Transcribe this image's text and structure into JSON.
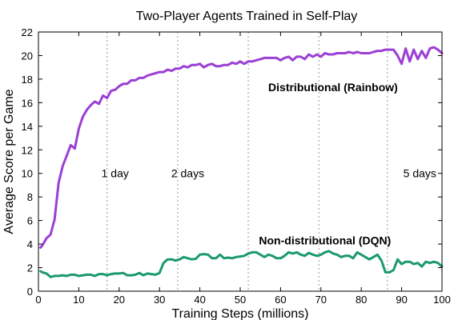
{
  "chart_data": {
    "type": "line",
    "title": "Two-Player Agents Trained in Self-Play",
    "xlabel": "Training Steps (millions)",
    "ylabel": "Average Score per Game",
    "xlim": [
      0,
      100
    ],
    "ylim": [
      0,
      22
    ],
    "xticks": [
      "0",
      "10",
      "20",
      "30",
      "40",
      "50",
      "60",
      "70",
      "80",
      "90",
      "100"
    ],
    "yticks": [
      "0",
      "2",
      "4",
      "6",
      "8",
      "10",
      "12",
      "14",
      "16",
      "18",
      "20",
      "22"
    ],
    "grid": false,
    "markers": [
      {
        "x": 17,
        "label": "1 day",
        "label_x": 19,
        "label_y": 10
      },
      {
        "x": 34.5,
        "label": "2 days",
        "label_x": 37,
        "label_y": 10
      },
      {
        "x": 52,
        "label": "",
        "label_x": null,
        "label_y": null
      },
      {
        "x": 69.5,
        "label": "",
        "label_x": null,
        "label_y": null
      },
      {
        "x": 86.5,
        "label": "5 days",
        "label_x": 94.5,
        "label_y": 10
      }
    ],
    "series": [
      {
        "name": "Distributional (Rainbow)",
        "color": "#9b3fd6",
        "label_x": 73,
        "label_y": 17.3,
        "x": [
          0.5,
          1,
          2,
          3,
          4,
          5,
          6,
          7,
          8,
          9,
          10,
          11,
          12,
          13,
          14,
          15,
          16,
          17,
          18,
          19,
          20,
          21,
          22,
          23,
          24,
          25,
          26,
          27,
          28,
          29,
          30,
          31,
          32,
          33,
          34,
          35,
          36,
          37,
          38,
          39,
          40,
          41,
          42,
          43,
          44,
          45,
          46,
          47,
          48,
          49,
          50,
          51,
          52,
          53,
          54,
          55,
          56,
          57,
          58,
          59,
          60,
          61,
          62,
          63,
          64,
          65,
          66,
          67,
          68,
          69,
          70,
          71,
          72,
          73,
          74,
          75,
          76,
          77,
          78,
          79,
          80,
          81,
          82,
          83,
          84,
          85,
          86,
          87,
          88,
          89,
          90,
          91,
          92,
          93,
          94,
          95,
          96,
          97,
          98,
          99,
          100
        ],
        "y": [
          3.7,
          3.9,
          4.5,
          4.8,
          6.1,
          9.2,
          10.6,
          11.5,
          12.4,
          12.1,
          13.8,
          14.8,
          15.4,
          15.8,
          16.1,
          15.9,
          16.6,
          16.4,
          17.0,
          17.1,
          17.4,
          17.6,
          17.6,
          17.9,
          17.9,
          18.1,
          18.1,
          18.3,
          18.4,
          18.5,
          18.6,
          18.6,
          18.8,
          18.7,
          18.9,
          18.9,
          19.1,
          19.0,
          19.2,
          19.2,
          19.3,
          19.0,
          19.2,
          19.3,
          19.1,
          19.1,
          19.2,
          19.2,
          19.4,
          19.3,
          19.5,
          19.3,
          19.5,
          19.5,
          19.6,
          19.7,
          19.8,
          19.8,
          19.8,
          19.8,
          19.6,
          19.8,
          19.9,
          19.6,
          19.9,
          19.9,
          19.7,
          20.1,
          19.9,
          20.1,
          19.9,
          20.2,
          20.1,
          20.1,
          20.2,
          20.2,
          20.2,
          20.3,
          20.2,
          20.3,
          20.2,
          20.2,
          20.2,
          20.3,
          20.4,
          20.4,
          20.5,
          20.5,
          20.5,
          20.0,
          19.3,
          20.6,
          19.5,
          20.5,
          19.7,
          20.4,
          19.8,
          20.6,
          20.7,
          20.5,
          20.2
        ]
      },
      {
        "name": "Non-distributional (DQN)",
        "color": "#1a9a6c",
        "label_x": 71,
        "label_y": 4.3,
        "x": [
          0.5,
          1,
          2,
          3,
          4,
          5,
          6,
          7,
          8,
          9,
          10,
          11,
          12,
          13,
          14,
          15,
          16,
          17,
          18,
          19,
          20,
          21,
          22,
          23,
          24,
          25,
          26,
          27,
          28,
          29,
          30,
          31,
          32,
          33,
          34,
          35,
          36,
          37,
          38,
          39,
          40,
          41,
          42,
          43,
          44,
          45,
          46,
          47,
          48,
          49,
          50,
          51,
          52,
          53,
          54,
          55,
          56,
          57,
          58,
          59,
          60,
          61,
          62,
          63,
          64,
          65,
          66,
          67,
          68,
          69,
          70,
          71,
          72,
          73,
          74,
          75,
          76,
          77,
          78,
          79,
          80,
          81,
          82,
          83,
          84,
          85,
          86,
          87,
          88,
          89,
          90,
          91,
          92,
          93,
          94,
          95,
          96,
          97,
          98,
          99,
          100
        ],
        "y": [
          1.7,
          1.6,
          1.5,
          1.2,
          1.3,
          1.3,
          1.35,
          1.3,
          1.4,
          1.4,
          1.3,
          1.35,
          1.4,
          1.4,
          1.3,
          1.45,
          1.45,
          1.35,
          1.45,
          1.5,
          1.5,
          1.55,
          1.35,
          1.35,
          1.4,
          1.55,
          1.35,
          1.5,
          1.45,
          1.4,
          1.55,
          2.4,
          2.7,
          2.7,
          2.6,
          2.7,
          2.9,
          2.8,
          2.7,
          2.75,
          3.1,
          3.15,
          3.1,
          2.8,
          2.8,
          3.1,
          2.8,
          2.85,
          2.8,
          2.9,
          2.95,
          3.0,
          3.2,
          3.3,
          3.3,
          3.1,
          2.9,
          3.1,
          3.0,
          2.8,
          2.8,
          3.0,
          3.3,
          3.2,
          3.3,
          3.1,
          3.0,
          3.25,
          3.1,
          3.0,
          3.1,
          3.3,
          3.4,
          3.2,
          3.1,
          2.9,
          3.0,
          3.0,
          2.8,
          3.3,
          3.1,
          2.9,
          2.7,
          2.9,
          3.1,
          2.6,
          1.6,
          1.6,
          1.8,
          2.7,
          2.3,
          2.5,
          2.5,
          2.3,
          2.4,
          2.1,
          2.5,
          2.4,
          2.5,
          2.4,
          2.1
        ]
      }
    ]
  }
}
